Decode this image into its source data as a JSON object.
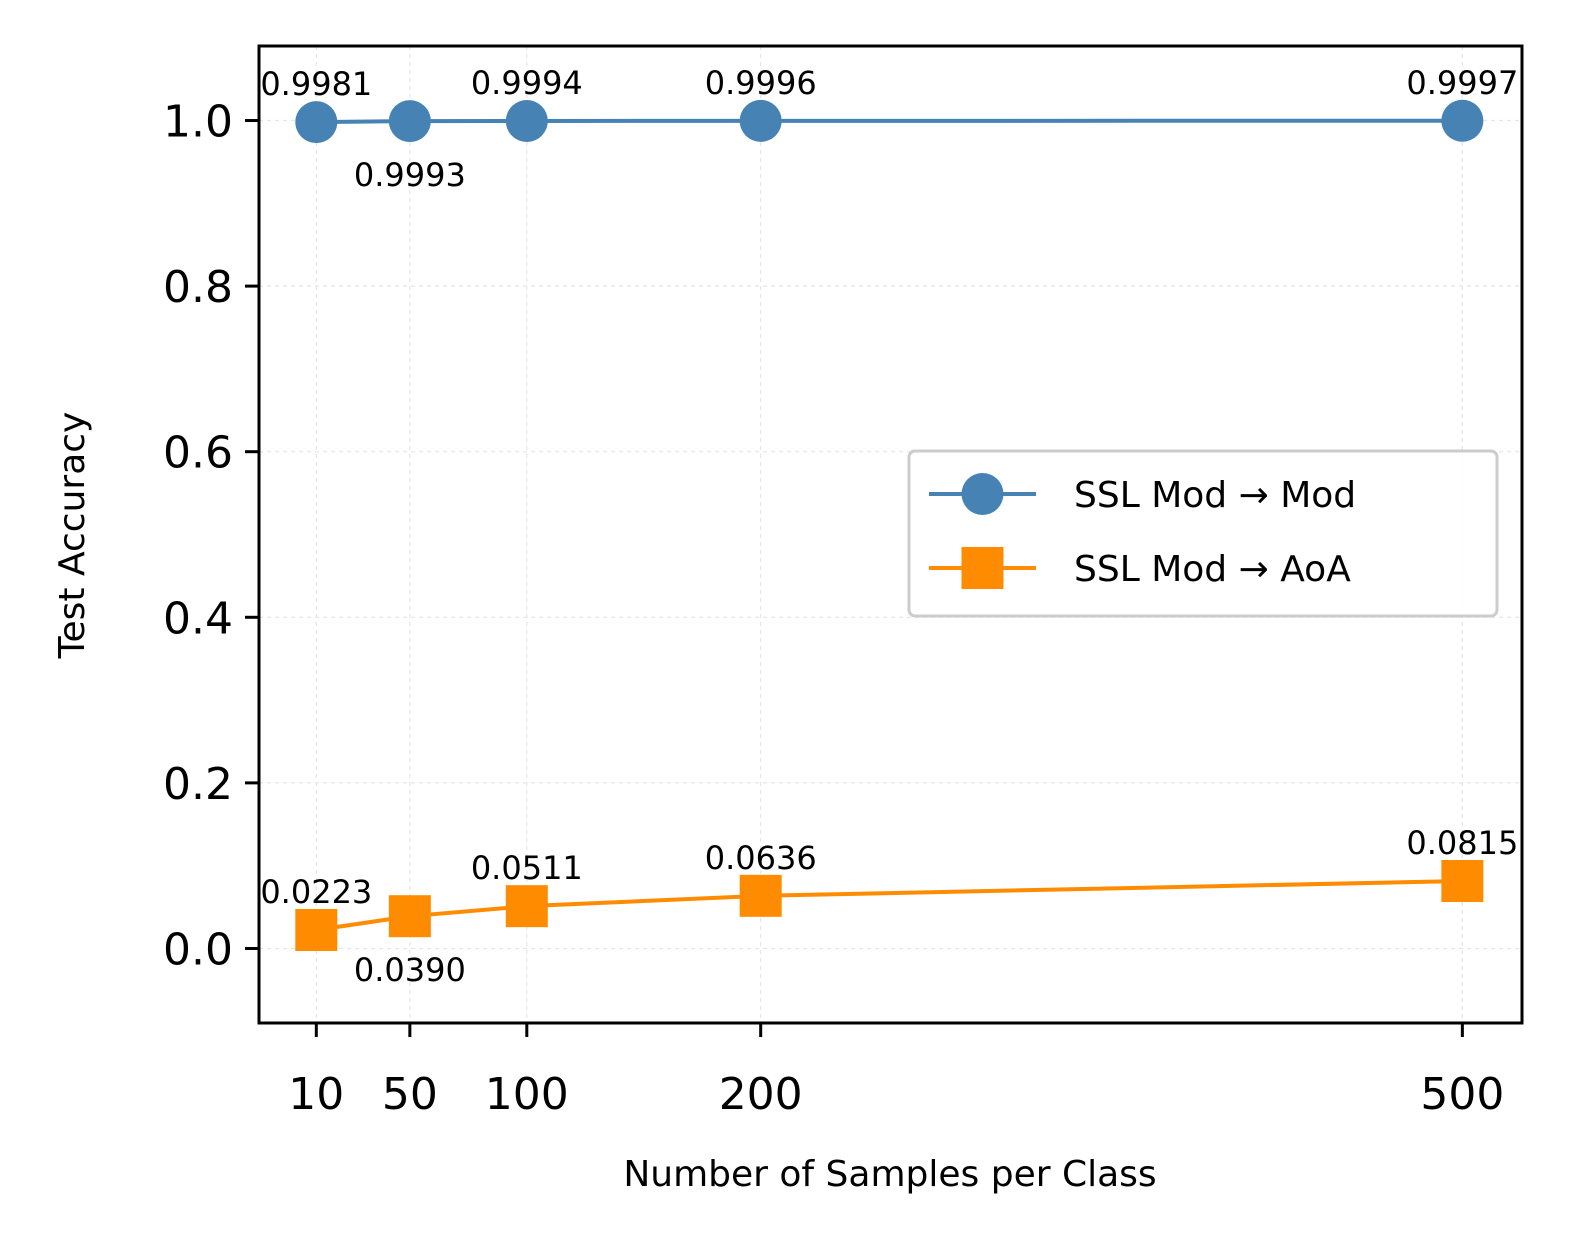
{
  "chart_data": {
    "type": "line",
    "title": "",
    "xlabel": "Number of Samples per Class",
    "ylabel": "Test Accuracy",
    "x": [
      10,
      50,
      100,
      200,
      500
    ],
    "x_tick_labels": [
      "10",
      "50",
      "100",
      "200",
      "500"
    ],
    "xlim": [
      -14.5,
      525.5
    ],
    "y_ticks": [
      0.0,
      0.2,
      0.4,
      0.6,
      0.8,
      1.0
    ],
    "y_tick_labels": [
      "0.0",
      "0.2",
      "0.4",
      "0.6",
      "0.8",
      "1.0"
    ],
    "ylim": [
      -0.09,
      1.09
    ],
    "grid": true,
    "legend_position": "center-right",
    "series": [
      {
        "name": "SSL Mod → Mod",
        "color": "#4682b4",
        "marker": "circle",
        "values": [
          0.9981,
          0.9993,
          0.9994,
          0.9996,
          0.9997
        ],
        "labels": [
          "0.9981",
          "0.9993",
          "0.9994",
          "0.9996",
          "0.9997"
        ],
        "label_side": [
          "above",
          "below",
          "above",
          "above",
          "above"
        ]
      },
      {
        "name": "SSL Mod → AoA",
        "color": "#ff8c00",
        "marker": "square",
        "values": [
          0.0223,
          0.039,
          0.0511,
          0.0636,
          0.0815
        ],
        "labels": [
          "0.0223",
          "0.0390",
          "0.0511",
          "0.0636",
          "0.0815"
        ],
        "label_side": [
          "above",
          "below",
          "above",
          "above",
          "above"
        ]
      }
    ]
  }
}
